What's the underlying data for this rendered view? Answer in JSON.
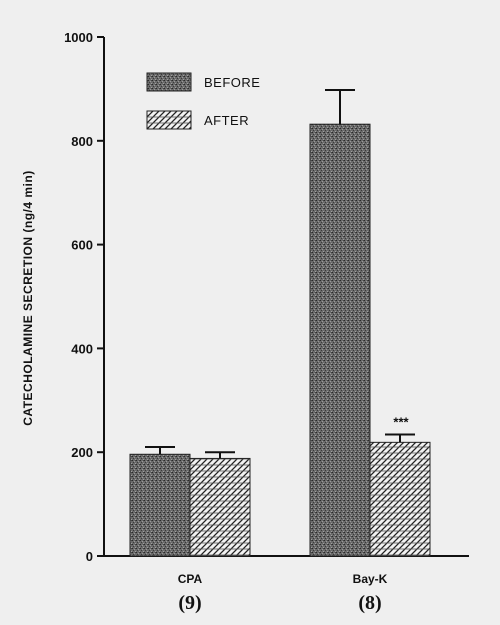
{
  "chart_data": {
    "type": "bar",
    "ylabel": "CATECHOLAMINE SECRETION (ng/4 min)",
    "xlabel": "",
    "ylim": [
      0,
      1000
    ],
    "yticks": [
      0,
      200,
      400,
      600,
      800,
      1000
    ],
    "grid": false,
    "legend_position": "top-left",
    "categories": [
      "CPA",
      "Bay-K"
    ],
    "category_n": [
      "(9)",
      "(8)"
    ],
    "series": [
      {
        "name": "BEFORE",
        "values": [
          196,
          832
        ],
        "errors": [
          14,
          66
        ],
        "color": "#5a5a5a"
      },
      {
        "name": "AFTER",
        "values": [
          188,
          219
        ],
        "errors": [
          12,
          15
        ],
        "color": "#8a8a8a"
      }
    ],
    "annotations": [
      {
        "text": "***",
        "category": "Bay-K",
        "series": "AFTER"
      }
    ]
  }
}
